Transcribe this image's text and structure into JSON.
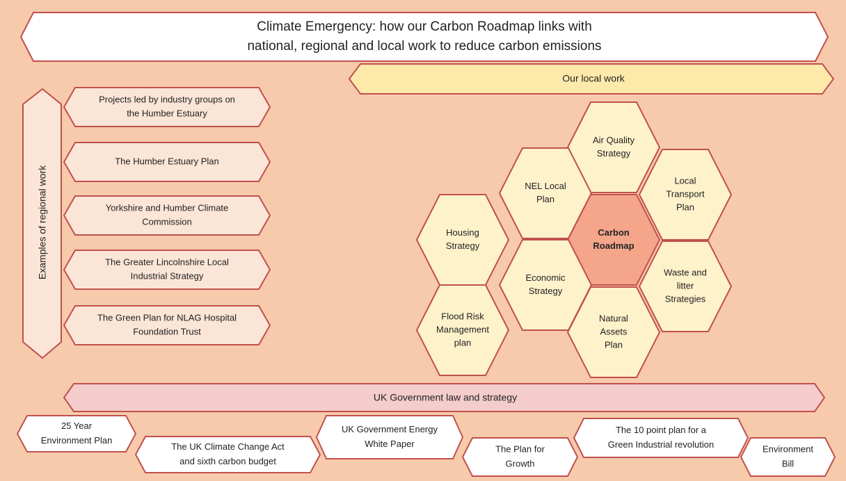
{
  "title": [
    "Climate Emergency: how our Carbon Roadmap links with",
    "national, regional and local work to reduce carbon emissions"
  ],
  "local_work": {
    "label": "Our local work"
  },
  "regional": {
    "label": "Examples of regional work",
    "items": [
      [
        "Projects led by industry groups on",
        "the Humber Estuary"
      ],
      [
        "The Humber Estuary Plan"
      ],
      [
        "Yorkshire and Humber Climate",
        "Commission"
      ],
      [
        "The Greater Lincolnshire Local",
        "Industrial Strategy"
      ],
      [
        "The Green Plan for NLAG Hospital",
        "Foundation Trust"
      ]
    ]
  },
  "hexagons": [
    [
      "Air Quality",
      "Strategy"
    ],
    [
      "NEL Local",
      "Plan"
    ],
    [
      "Local",
      "Transport",
      "Plan"
    ],
    [
      "Housing",
      "Strategy"
    ],
    [
      "Carbon",
      "Roadmap"
    ],
    [
      "Economic",
      "Strategy"
    ],
    [
      "Waste and",
      "litter",
      "Strategies"
    ],
    [
      "Flood Risk",
      "Management",
      "plan"
    ],
    [
      "Natural",
      "Assets",
      "Plan"
    ]
  ],
  "uk": {
    "label": "UK Government law and strategy",
    "items": [
      [
        "25 Year",
        "Environment Plan"
      ],
      [
        "The UK Climate Change Act",
        "and  sixth carbon budget"
      ],
      [
        "UK Government Energy",
        "White Paper"
      ],
      [
        "The Plan for",
        "Growth"
      ],
      [
        "The 10 point plan for a",
        "Green Industrial revolution"
      ],
      [
        "Environment",
        "Bill"
      ]
    ]
  }
}
